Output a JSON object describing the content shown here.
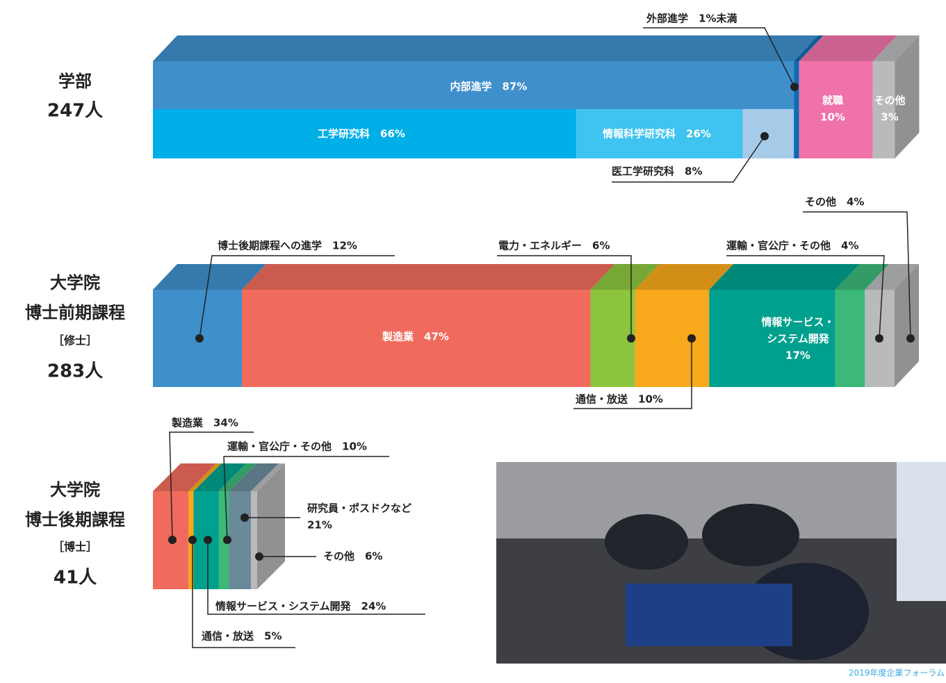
{
  "sections": [
    {
      "program": "学部",
      "count": "247人",
      "segments": [
        {
          "label": [
            "内部進学　87%"
          ],
          "value": 87,
          "color": "#3f8fcb",
          "sub": [
            {
              "label": [
                "工学研究科　66%"
              ],
              "value": 66,
              "color": "#00aee8"
            },
            {
              "label": [
                "情報科学研究科　26%"
              ],
              "value": 26,
              "color": "#3fc3f0"
            },
            {
              "label": [
                "医工学研究科　8%"
              ],
              "value": 8,
              "color": "#a6cbe9"
            }
          ]
        },
        {
          "label": [
            "外部進学　1%未満"
          ],
          "value": 0.7,
          "color": "#0f6bb3"
        },
        {
          "label": [
            "就職",
            "10%"
          ],
          "value": 10,
          "color": "#ef72a8"
        },
        {
          "label": [
            "その他",
            "3%"
          ],
          "value": 3,
          "color": "#b9babc"
        }
      ]
    },
    {
      "group": "大学院",
      "program": "博士前期課程",
      "degree": "［修士］",
      "count": "283人",
      "segments": [
        {
          "label": [
            "博士後期課程への進学　12%"
          ],
          "value": 12,
          "color": "#3f8fcb"
        },
        {
          "label": [
            "製造業　47%"
          ],
          "value": 47,
          "color": "#f06b5d"
        },
        {
          "label": [
            "電力・エネルギー　6%"
          ],
          "value": 6,
          "color": "#8cc43e"
        },
        {
          "label": [
            "通信・放送　10%"
          ],
          "value": 10,
          "color": "#f7a81b"
        },
        {
          "label": [
            "情報サービス・",
            "システム開発",
            "17%"
          ],
          "value": 17,
          "color": "#00a08e"
        },
        {
          "label": [
            "運輸・官公庁・その他　4%"
          ],
          "value": 4,
          "color": "#3cb878"
        },
        {
          "label": [
            "その他　4%"
          ],
          "value": 4,
          "color": "#b9babc"
        }
      ]
    },
    {
      "group": "大学院",
      "program": "博士後期課程",
      "degree": "［博士］",
      "count": "41人",
      "segments": [
        {
          "label": [
            "製造業　34%"
          ],
          "value": 34,
          "color": "#f06b5d"
        },
        {
          "label": [
            "通信・放送　5%"
          ],
          "value": 5,
          "color": "#f7a81b"
        },
        {
          "label": [
            "情報サービス・システム開発　24%"
          ],
          "value": 24,
          "color": "#00a08e"
        },
        {
          "label": [
            "運輸・官公庁・その他　10%"
          ],
          "value": 10,
          "color": "#3cb878"
        },
        {
          "label": [
            "研究員・ポスドクなど",
            "21%"
          ],
          "value": 21,
          "color": "#6a8a9a"
        },
        {
          "label": [
            "その他　6%"
          ],
          "value": 6,
          "color": "#b9babc"
        }
      ]
    }
  ],
  "photo_caption": "2019年度企業フォーラム"
}
